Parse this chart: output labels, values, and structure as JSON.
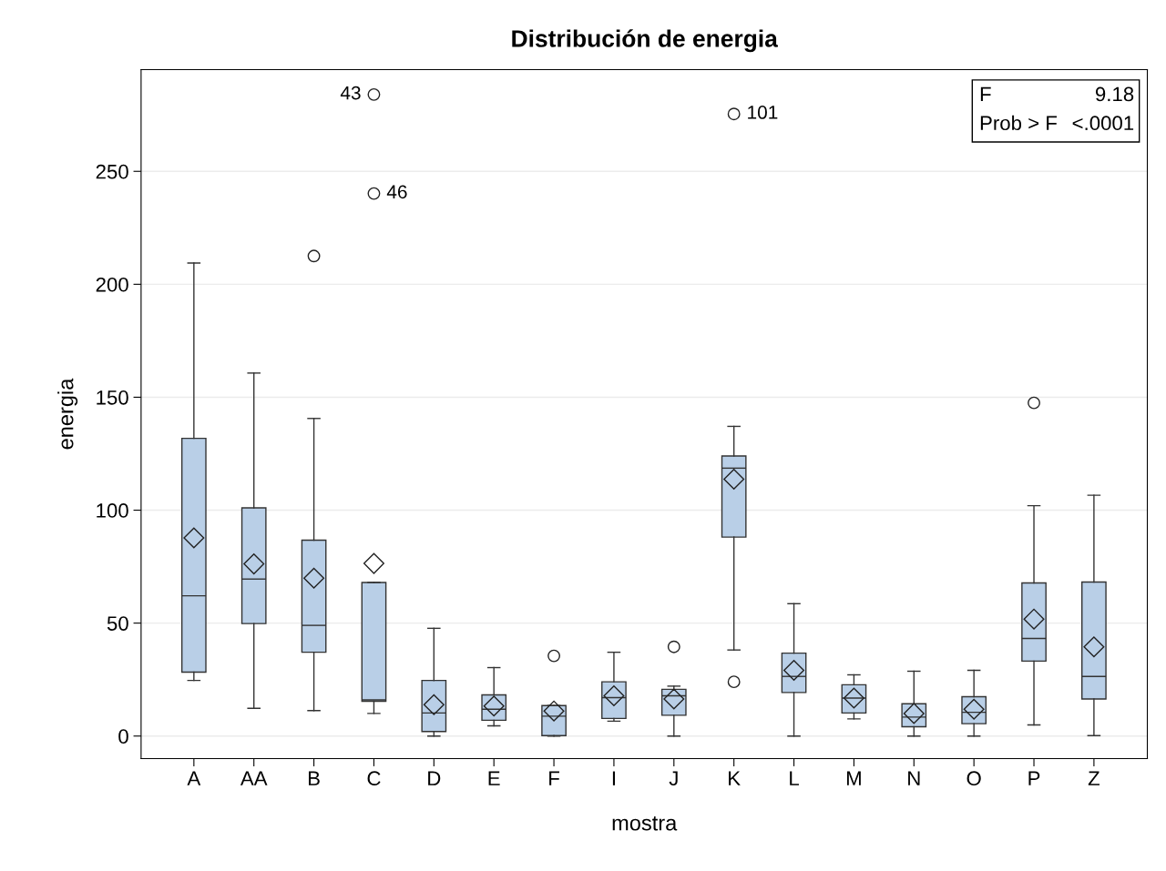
{
  "chart_data": {
    "type": "box",
    "title": "Distribución de energia",
    "xlabel": "mostra",
    "ylabel": "energia",
    "categories": [
      "A",
      "AA",
      "B",
      "C",
      "D",
      "E",
      "F",
      "I",
      "J",
      "K",
      "L",
      "M",
      "N",
      "O",
      "P",
      "Z"
    ],
    "color": "#b9cfe7",
    "boxes": [
      {
        "low": 24.6,
        "q1": 28.3,
        "median": 62.1,
        "q3": 131.8,
        "high": 209.4,
        "mean": 87.7
      },
      {
        "low": 12.3,
        "q1": 49.8,
        "median": 69.5,
        "q3": 101,
        "high": 160.7,
        "mean": 76.2
      },
      {
        "low": 11.3,
        "q1": 37.1,
        "median": 49,
        "q3": 86.7,
        "high": 140.6,
        "mean": 69.9,
        "outliers": [
          212.5
        ]
      },
      {
        "low": 10,
        "q1": 15.4,
        "median": 16,
        "q3": 68,
        "high": 68,
        "mean": 76.4,
        "outliers": [
          284,
          240.2
        ]
      },
      {
        "low": 0,
        "q1": 2,
        "median": 10.2,
        "q3": 24.6,
        "high": 47.7,
        "mean": 13.9
      },
      {
        "low": 4.5,
        "q1": 7,
        "median": 11.9,
        "q3": 18.2,
        "high": 30.3,
        "mean": 13.3
      },
      {
        "low": 0,
        "q1": 0.2,
        "median": 8.8,
        "q3": 13.5,
        "high": 13.5,
        "mean": 11.1,
        "outliers": [
          35.5
        ]
      },
      {
        "low": 6.6,
        "q1": 7.8,
        "median": 17,
        "q3": 24,
        "high": 37.1,
        "mean": 17.8
      },
      {
        "low": 0,
        "q1": 9.2,
        "median": 17.8,
        "q3": 20.7,
        "high": 22.1,
        "mean": 16.4,
        "outliers": [
          39.5
        ]
      },
      {
        "low": 38.1,
        "q1": 88.1,
        "median": 118.6,
        "q3": 124,
        "high": 137.1,
        "mean": 113.7,
        "outliers": [
          24,
          275.4
        ]
      },
      {
        "low": 0,
        "q1": 19.3,
        "median": 26.4,
        "q3": 36.7,
        "high": 58.6,
        "mean": 29.1
      },
      {
        "low": 7.6,
        "q1": 10.2,
        "median": 16.8,
        "q3": 22.7,
        "high": 27.1,
        "mean": 16.8
      },
      {
        "low": 0,
        "q1": 4.1,
        "median": 8.4,
        "q3": 14.3,
        "high": 28.7,
        "mean": 10
      },
      {
        "low": 0,
        "q1": 5.5,
        "median": 10.5,
        "q3": 17.4,
        "high": 29.1,
        "mean": 11.9
      },
      {
        "low": 4.9,
        "q1": 33.2,
        "median": 43.2,
        "q3": 67.8,
        "high": 102,
        "mean": 51.8,
        "outliers": [
          147.5
        ]
      },
      {
        "low": 0.2,
        "q1": 16.4,
        "median": 26.4,
        "q3": 68.2,
        "high": 106.6,
        "mean": 39.5
      }
    ],
    "ylim": [
      -10,
      295
    ],
    "yticks": [
      0,
      50,
      100,
      150,
      200,
      250
    ],
    "grid": "y",
    "annotations": [
      "43",
      "101",
      "46",
      "F",
      "9.18",
      "Prob > F",
      "<.0001"
    ]
  }
}
